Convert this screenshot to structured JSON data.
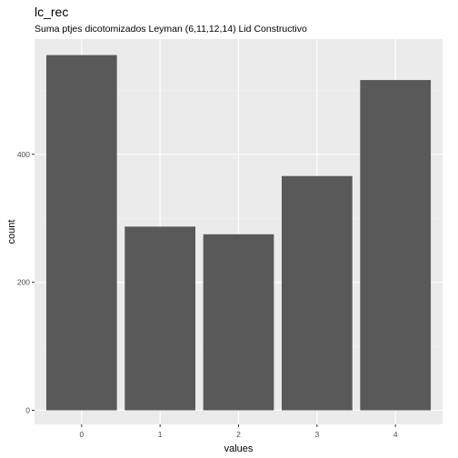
{
  "chart_data": {
    "type": "bar",
    "title": "lc_rec",
    "subtitle": "Suma ptjes dicotomizados Leyman (6,11,12,14) Lid Constructivo",
    "xlabel": "values",
    "ylabel": "count",
    "categories": [
      "0",
      "1",
      "2",
      "3",
      "4"
    ],
    "values": [
      555,
      287,
      275,
      366,
      516
    ],
    "ylim": [
      -22,
      580
    ],
    "yticks": [
      0,
      200,
      400
    ],
    "grid": true,
    "legend": "none",
    "colors": {
      "bar": "#595959",
      "panel": "#ebebeb",
      "grid_major": "#ffffff",
      "grid_minor": "#f2f2f2"
    }
  }
}
